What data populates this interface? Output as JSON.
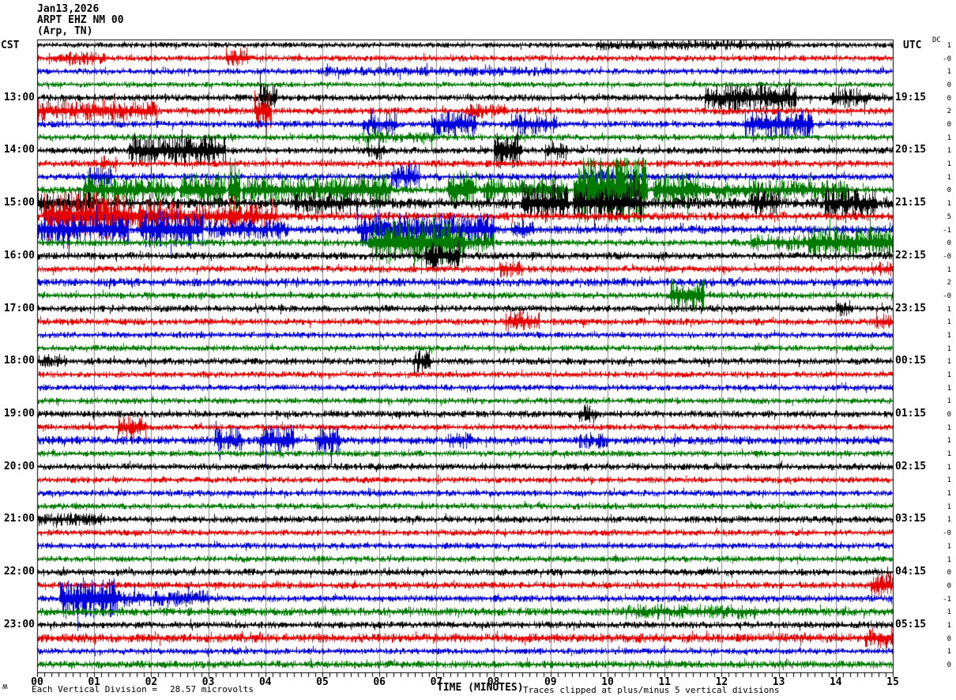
{
  "title": {
    "date": "Jan13,2026",
    "station": "ARPT EHZ NM 00",
    "location": "(Arp, TN)"
  },
  "axes": {
    "left_header": "CST",
    "right_header": "UTC",
    "dc_header": "DC",
    "x_axis_title": "TIME (MINUTES)",
    "x_tick_labels": [
      "00",
      "01",
      "02",
      "03",
      "04",
      "05",
      "06",
      "07",
      "08",
      "09",
      "10",
      "11",
      "12",
      "13",
      "14",
      "15"
    ]
  },
  "footer": {
    "scale_label": "Each Vertical Division =",
    "scale_value": "28.57 microvolts",
    "clip_note": "Traces clipped at plus/minus 5 vertical divisions",
    "corner_mark": "ʍ"
  },
  "colors": {
    "trace_cycle": [
      "#000000",
      "#e60000",
      "#0000dd",
      "#007a00"
    ],
    "grid": "#888888",
    "border": "#000000",
    "background": "#ffffff"
  },
  "chart_data": {
    "type": "line",
    "subtype": "helicorder-seismogram",
    "x_minutes_range": [
      0,
      15
    ],
    "minutes_per_row": 15,
    "rows_count": 48,
    "clip_divisions": 5,
    "microvolts_per_division": 28.57,
    "rows": [
      {
        "cst": "",
        "utc": "",
        "dc": "1",
        "base": 0.4,
        "events": [
          [
            9.8,
            13.2,
            0.35
          ]
        ]
      },
      {
        "cst": "",
        "utc": "",
        "dc": "-0",
        "base": 0.45,
        "events": [
          [
            0.2,
            1.2,
            0.5
          ],
          [
            3.3,
            3.7,
            1.1
          ]
        ]
      },
      {
        "cst": "",
        "utc": "",
        "dc": "1",
        "base": 0.45,
        "events": [
          [
            5,
            9,
            0.25
          ]
        ]
      },
      {
        "cst": "",
        "utc": "",
        "dc": "0",
        "base": 0.4,
        "events": []
      },
      {
        "cst": "13:00",
        "utc": "19:15",
        "dc": "0",
        "base": 0.5,
        "events": [
          [
            3.9,
            4.2,
            1.6
          ],
          [
            11.7,
            13.3,
            1.4
          ],
          [
            13.9,
            14.6,
            1.0
          ]
        ]
      },
      {
        "cst": "",
        "utc": "",
        "dc": "2",
        "base": 0.5,
        "events": [
          [
            0,
            2.1,
            1.0
          ],
          [
            3.8,
            4.1,
            2.0
          ],
          [
            7.5,
            8.2,
            0.6
          ]
        ]
      },
      {
        "cst": "",
        "utc": "",
        "dc": "0",
        "base": 0.5,
        "events": [
          [
            5.7,
            6.3,
            1.0
          ],
          [
            6.9,
            7.7,
            1.4
          ],
          [
            8.3,
            9.1,
            1.1
          ],
          [
            12.4,
            13.6,
            1.6
          ]
        ]
      },
      {
        "cst": "",
        "utc": "",
        "dc": "1",
        "base": 0.45,
        "events": [
          [
            5.5,
            7,
            0.4
          ]
        ]
      },
      {
        "cst": "14:00",
        "utc": "20:15",
        "dc": "1",
        "base": 0.5,
        "events": [
          [
            1.6,
            3.3,
            1.6
          ],
          [
            5.8,
            6.1,
            0.8
          ],
          [
            8.0,
            8.5,
            2.0
          ],
          [
            8.9,
            9.3,
            0.9
          ]
        ]
      },
      {
        "cst": "",
        "utc": "",
        "dc": "1",
        "base": 0.5,
        "events": [
          [
            1.1,
            1.4,
            0.7
          ]
        ]
      },
      {
        "cst": "",
        "utc": "",
        "dc": "1",
        "base": 0.5,
        "events": [
          [
            0.9,
            1.3,
            0.9
          ],
          [
            6.2,
            6.7,
            1.3
          ],
          [
            9.5,
            10.5,
            0.6
          ]
        ]
      },
      {
        "cst": "",
        "utc": "",
        "dc": "0",
        "base": 0.55,
        "events": [
          [
            0.8,
            2.4,
            1.3
          ],
          [
            2.5,
            3.3,
            2.0
          ],
          [
            3.35,
            3.55,
            4.2
          ],
          [
            3.6,
            5.2,
            1.4
          ],
          [
            5.2,
            6.2,
            1.8
          ],
          [
            7.2,
            7.7,
            2.3
          ],
          [
            7.8,
            9.3,
            1.2
          ],
          [
            9.4,
            10.7,
            4.6
          ],
          [
            10.8,
            11.6,
            2.0
          ],
          [
            11.6,
            14.2,
            0.9
          ]
        ]
      },
      {
        "cst": "15:00",
        "utc": "21:15",
        "dc": "1",
        "base": 0.8,
        "events": [
          [
            0,
            1,
            1.0
          ],
          [
            4.5,
            5.5,
            0.8
          ],
          [
            8.5,
            9.3,
            2.0
          ],
          [
            9.4,
            10.6,
            1.6
          ],
          [
            12.5,
            13,
            1.0
          ],
          [
            13.8,
            14.7,
            1.3
          ]
        ]
      },
      {
        "cst": "",
        "utc": "",
        "dc": "5",
        "base": 0.6,
        "events": [
          [
            0.1,
            1.6,
            2.8
          ],
          [
            1.6,
            2.6,
            1.7
          ],
          [
            2.6,
            4.2,
            1.1
          ],
          [
            3.35,
            3.55,
            2.3
          ]
        ]
      },
      {
        "cst": "",
        "utc": "",
        "dc": "-1",
        "base": 0.6,
        "events": [
          [
            0,
            1.6,
            1.5
          ],
          [
            1.8,
            2.9,
            2.1
          ],
          [
            3,
            4.4,
            0.8
          ],
          [
            5.6,
            8,
            1.7
          ],
          [
            8.3,
            8.7,
            0.9
          ]
        ]
      },
      {
        "cst": "",
        "utc": "",
        "dc": "0",
        "base": 0.5,
        "events": [
          [
            5.8,
            7.5,
            2.7
          ],
          [
            7.5,
            8,
            0.9
          ],
          [
            12.5,
            13.5,
            0.7
          ],
          [
            13.5,
            15,
            1.8
          ]
        ]
      },
      {
        "cst": "16:00",
        "utc": "22:15",
        "dc": "-0",
        "base": 0.55,
        "events": [
          [
            6.8,
            7.4,
            1.4
          ]
        ]
      },
      {
        "cst": "",
        "utc": "",
        "dc": "1",
        "base": 0.5,
        "events": [
          [
            8.1,
            8.5,
            0.7
          ],
          [
            14.6,
            15,
            0.6
          ]
        ]
      },
      {
        "cst": "",
        "utc": "",
        "dc": "2",
        "base": 0.6,
        "events": []
      },
      {
        "cst": "",
        "utc": "",
        "dc": "-0",
        "base": 0.5,
        "events": [
          [
            11.1,
            11.7,
            1.8
          ]
        ]
      },
      {
        "cst": "17:00",
        "utc": "23:15",
        "dc": "1",
        "base": 0.5,
        "events": [
          [
            14,
            14.3,
            0.7
          ]
        ]
      },
      {
        "cst": "",
        "utc": "",
        "dc": "1",
        "base": 0.5,
        "events": [
          [
            8.2,
            8.8,
            0.9
          ],
          [
            14.7,
            15,
            0.7
          ]
        ]
      },
      {
        "cst": "",
        "utc": "",
        "dc": "1",
        "base": 0.45,
        "events": []
      },
      {
        "cst": "",
        "utc": "",
        "dc": "1",
        "base": 0.45,
        "events": []
      },
      {
        "cst": "18:00",
        "utc": "00:15",
        "dc": "1",
        "base": 0.5,
        "events": [
          [
            0,
            0.5,
            0.5
          ],
          [
            6.6,
            6.9,
            1.2
          ]
        ]
      },
      {
        "cst": "",
        "utc": "",
        "dc": "1",
        "base": 0.45,
        "events": []
      },
      {
        "cst": "",
        "utc": "",
        "dc": "1",
        "base": 0.45,
        "events": []
      },
      {
        "cst": "",
        "utc": "",
        "dc": "1",
        "base": 0.45,
        "events": []
      },
      {
        "cst": "19:00",
        "utc": "01:15",
        "dc": "0",
        "base": 0.5,
        "events": [
          [
            9.5,
            9.8,
            0.9
          ]
        ]
      },
      {
        "cst": "",
        "utc": "",
        "dc": "1",
        "base": 0.45,
        "events": [
          [
            1.4,
            1.9,
            1.2
          ]
        ]
      },
      {
        "cst": "",
        "utc": "",
        "dc": "1",
        "base": 0.6,
        "events": [
          [
            3.1,
            3.6,
            1.2
          ],
          [
            3.9,
            4.5,
            1.8
          ],
          [
            4.9,
            5.3,
            1.5
          ],
          [
            7.2,
            7.6,
            0.7
          ],
          [
            9.5,
            10,
            0.6
          ]
        ]
      },
      {
        "cst": "",
        "utc": "",
        "dc": "1",
        "base": 0.45,
        "events": []
      },
      {
        "cst": "20:00",
        "utc": "02:15",
        "dc": "1",
        "base": 0.5,
        "events": []
      },
      {
        "cst": "",
        "utc": "",
        "dc": "1",
        "base": 0.45,
        "events": []
      },
      {
        "cst": "",
        "utc": "",
        "dc": "1",
        "base": 0.45,
        "events": []
      },
      {
        "cst": "",
        "utc": "",
        "dc": "1",
        "base": 0.45,
        "events": []
      },
      {
        "cst": "21:00",
        "utc": "03:15",
        "dc": "1",
        "base": 0.5,
        "events": [
          [
            0,
            1.2,
            0.4
          ]
        ]
      },
      {
        "cst": "",
        "utc": "",
        "dc": "-0",
        "base": 0.45,
        "events": []
      },
      {
        "cst": "",
        "utc": "",
        "dc": "1",
        "base": 0.45,
        "events": []
      },
      {
        "cst": "",
        "utc": "",
        "dc": "1",
        "base": 0.45,
        "events": []
      },
      {
        "cst": "22:00",
        "utc": "04:15",
        "dc": "0",
        "base": 0.5,
        "events": []
      },
      {
        "cst": "",
        "utc": "",
        "dc": "0",
        "base": 0.5,
        "events": [
          [
            14.6,
            15,
            1.4
          ]
        ]
      },
      {
        "cst": "",
        "utc": "",
        "dc": "-1",
        "base": 0.5,
        "events": [
          [
            0.4,
            1.4,
            2.4
          ],
          [
            1.4,
            3,
            0.7
          ]
        ]
      },
      {
        "cst": "",
        "utc": "",
        "dc": "1",
        "base": 0.6,
        "events": [
          [
            10.3,
            12.6,
            0.5
          ]
        ]
      },
      {
        "cst": "23:00",
        "utc": "05:15",
        "dc": "1",
        "base": 0.5,
        "events": []
      },
      {
        "cst": "",
        "utc": "",
        "dc": "0",
        "base": 0.65,
        "events": [
          [
            14.5,
            15,
            0.9
          ]
        ]
      },
      {
        "cst": "",
        "utc": "",
        "dc": "1",
        "base": 0.45,
        "events": []
      },
      {
        "cst": "",
        "utc": "",
        "dc": "0",
        "base": 0.55,
        "events": []
      }
    ]
  },
  "layout_note": "rows read top to bottom, 15 minutes per row, colors cycle black/red/blue/green"
}
